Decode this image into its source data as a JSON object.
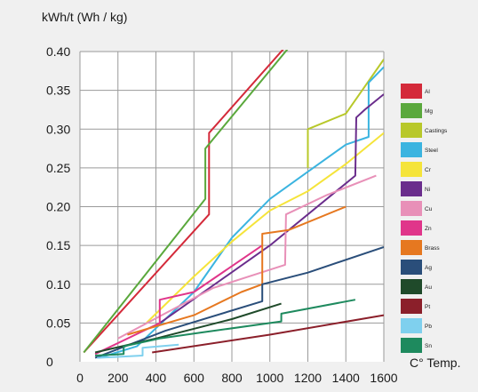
{
  "chart_data": {
    "type": "line",
    "title": "",
    "ylabel": "kWh/t (Wh / kg)",
    "xlabel": "C° Temp.",
    "xlim": [
      0,
      1600
    ],
    "ylim": [
      0,
      0.4
    ],
    "x_ticks": [
      "0",
      "200",
      "400",
      "600",
      "800",
      "1000",
      "1200",
      "1400",
      "1600"
    ],
    "y_ticks": [
      "0",
      "0.05",
      "0.10",
      "0.15",
      "0.20",
      "0.25",
      "0.30",
      "0.35",
      "0.40"
    ],
    "grid": true,
    "legend_position": "right",
    "series": [
      {
        "name": "Al",
        "color": "#d42a3a",
        "points": [
          [
            20,
            0.012
          ],
          [
            680,
            0.19
          ],
          [
            680,
            0.295
          ],
          [
            1150,
            0.425
          ]
        ]
      },
      {
        "name": "Mg",
        "color": "#5aa83c",
        "points": [
          [
            20,
            0.012
          ],
          [
            660,
            0.21
          ],
          [
            660,
            0.275
          ],
          [
            1150,
            0.42
          ]
        ]
      },
      {
        "name": "Castings",
        "color": "#b8c82a",
        "points": [
          [
            1200,
            0.25
          ],
          [
            1200,
            0.3
          ],
          [
            1400,
            0.32
          ],
          [
            1600,
            0.39
          ]
        ]
      },
      {
        "name": "Steel",
        "color": "#3bb4e0",
        "points": [
          [
            100,
            0.005
          ],
          [
            300,
            0.02
          ],
          [
            600,
            0.09
          ],
          [
            800,
            0.16
          ],
          [
            1000,
            0.21
          ],
          [
            1200,
            0.245
          ],
          [
            1400,
            0.28
          ],
          [
            1520,
            0.29
          ],
          [
            1520,
            0.36
          ],
          [
            1600,
            0.38
          ]
        ]
      },
      {
        "name": "Cr",
        "color": "#f5e43a",
        "points": [
          [
            350,
            0.05
          ],
          [
            600,
            0.11
          ],
          [
            800,
            0.155
          ],
          [
            1000,
            0.195
          ],
          [
            1200,
            0.22
          ],
          [
            1400,
            0.255
          ],
          [
            1600,
            0.295
          ]
        ]
      },
      {
        "name": "Ni",
        "color": "#6a2d8c",
        "points": [
          [
            420,
            0.05
          ],
          [
            1000,
            0.15
          ],
          [
            1450,
            0.24
          ],
          [
            1455,
            0.315
          ],
          [
            1500,
            0.325
          ],
          [
            1600,
            0.345
          ]
        ]
      },
      {
        "name": "Cu",
        "color": "#e890b8",
        "points": [
          [
            200,
            0.03
          ],
          [
            700,
            0.095
          ],
          [
            1080,
            0.125
          ],
          [
            1085,
            0.19
          ],
          [
            1300,
            0.215
          ],
          [
            1560,
            0.24
          ]
        ]
      },
      {
        "name": "Zn",
        "color": "#e0358a",
        "points": [
          [
            80,
            0.01
          ],
          [
            420,
            0.05
          ],
          [
            420,
            0.08
          ],
          [
            600,
            0.09
          ],
          [
            960,
            0.15
          ]
        ]
      },
      {
        "name": "Brass",
        "color": "#e67820",
        "points": [
          [
            250,
            0.035
          ],
          [
            600,
            0.06
          ],
          [
            850,
            0.09
          ],
          [
            960,
            0.1
          ],
          [
            960,
            0.165
          ],
          [
            1100,
            0.17
          ],
          [
            1400,
            0.2
          ]
        ]
      },
      {
        "name": "Ag",
        "color": "#2a4e7a",
        "points": [
          [
            80,
            0.005
          ],
          [
            450,
            0.04
          ],
          [
            960,
            0.078
          ],
          [
            960,
            0.1
          ],
          [
            1200,
            0.115
          ],
          [
            1600,
            0.148
          ]
        ]
      },
      {
        "name": "Au",
        "color": "#1f4a2a",
        "points": [
          [
            80,
            0.012
          ],
          [
            400,
            0.03
          ],
          [
            800,
            0.055
          ],
          [
            1060,
            0.075
          ]
        ]
      },
      {
        "name": "Pt",
        "color": "#8b1f2a",
        "points": [
          [
            380,
            0.012
          ],
          [
            1000,
            0.035
          ],
          [
            1600,
            0.06
          ]
        ]
      },
      {
        "name": "Pb",
        "color": "#7fd0ee",
        "points": [
          [
            90,
            0.005
          ],
          [
            330,
            0.008
          ],
          [
            330,
            0.018
          ],
          [
            520,
            0.022
          ]
        ]
      },
      {
        "name": "Sn",
        "color": "#1e8a5e",
        "points": [
          [
            80,
            0.008
          ],
          [
            230,
            0.01
          ],
          [
            230,
            0.02
          ],
          [
            420,
            0.03
          ],
          [
            650,
            0.038
          ],
          [
            1060,
            0.052
          ],
          [
            1060,
            0.062
          ],
          [
            1450,
            0.08
          ]
        ]
      }
    ]
  }
}
